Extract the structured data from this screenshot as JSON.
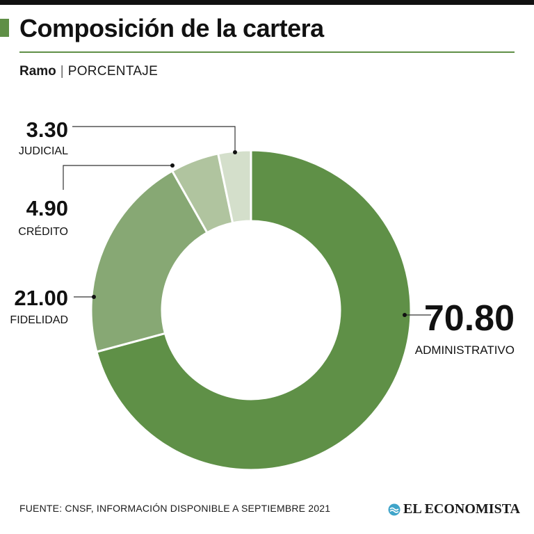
{
  "header": {
    "title": "Composición de la cartera",
    "subtitle_bold": "Ramo",
    "subtitle_sep": "|",
    "subtitle_unit": "PORCENTAJE"
  },
  "chart_data": {
    "type": "pie",
    "donut": true,
    "categories": [
      "ADMINISTRATIVO",
      "FIDELIDAD",
      "CRÉDITO",
      "JUDICIAL"
    ],
    "values": [
      70.8,
      21.0,
      4.9,
      3.3
    ],
    "value_labels": [
      "70.80",
      "21.00",
      "4.90",
      "3.30"
    ],
    "colors": [
      "#5f9047",
      "#87a874",
      "#b0c49f",
      "#d4dfcb"
    ],
    "title": "Composición de la cartera",
    "unit": "PORCENTAJE"
  },
  "footer": {
    "source": "FUENTE: CNSF, INFORMACIÓN DISPONIBLE A SEPTIEMBRE 2021",
    "brand": "EL ECONOMISTA",
    "brand_icon": "wave-icon"
  }
}
